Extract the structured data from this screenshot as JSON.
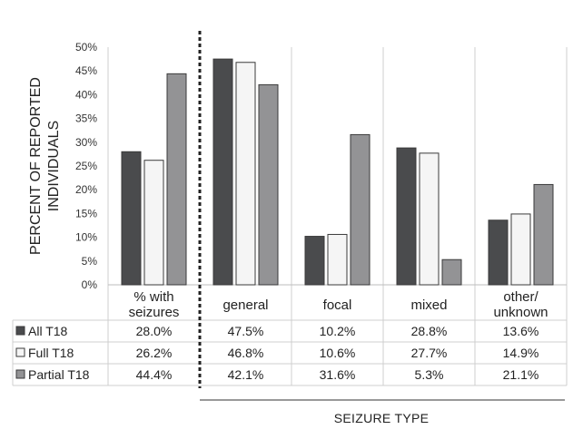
{
  "chart_data": {
    "type": "bar",
    "ylabel_lines": [
      "PERCENT OF REPORTED",
      "INDIVIDUALS"
    ],
    "xlabel": "SEIZURE TYPE",
    "ylim": [
      0,
      50
    ],
    "yticks": [
      "0%",
      "5%",
      "10%",
      "15%",
      "20%",
      "25%",
      "30%",
      "35%",
      "40%",
      "45%",
      "50%"
    ],
    "categories": [
      [
        "% with",
        "seizures"
      ],
      [
        "general"
      ],
      [
        "focal"
      ],
      [
        "mixed"
      ],
      [
        "other/",
        "unknown"
      ]
    ],
    "series": [
      {
        "name": "All T18",
        "color": "#4a4b4d",
        "values": [
          28.0,
          47.5,
          10.2,
          28.8,
          13.6
        ],
        "labels": [
          "28.0%",
          "47.5%",
          "10.2%",
          "28.8%",
          "13.6%"
        ]
      },
      {
        "name": "Full T18",
        "color": "#f5f5f5",
        "values": [
          26.2,
          46.8,
          10.6,
          27.7,
          14.9
        ],
        "labels": [
          "26.2%",
          "46.8%",
          "10.6%",
          "27.7%",
          "14.9%"
        ]
      },
      {
        "name": "Partial T18",
        "color": "#939395",
        "values": [
          44.4,
          42.1,
          31.6,
          5.3,
          21.1
        ],
        "labels": [
          "44.4%",
          "42.1%",
          "31.6%",
          "5.3%",
          "21.1%"
        ]
      }
    ],
    "grid": "vertical separators",
    "legend": "data table, left"
  }
}
